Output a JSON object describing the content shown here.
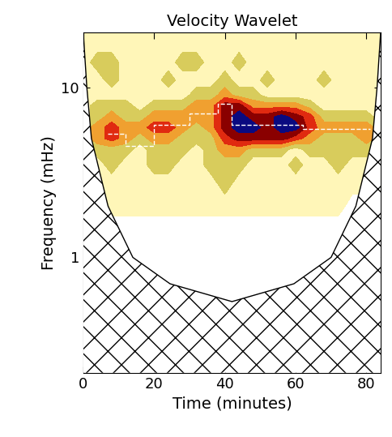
{
  "chart_data": {
    "type": "heatmap",
    "title": "Velocity Wavelet",
    "x_label": "Time (minutes)",
    "y_label": "Frequency (mHz)",
    "log": "y",
    "xlim": [
      0,
      84
    ],
    "ylim": [
      0.21,
      21
    ],
    "xticks": [
      0,
      20,
      40,
      60,
      80
    ],
    "yticks": [
      1,
      10
    ],
    "x": [
      0,
      4,
      8,
      12,
      16,
      20,
      24,
      28,
      32,
      36,
      40,
      44,
      48,
      52,
      56,
      60,
      64,
      68,
      72,
      76,
      80,
      84
    ],
    "y": [
      1.5,
      2,
      2.7,
      3.5,
      4.3,
      5,
      5.8,
      6.7,
      7.8,
      9,
      11,
      14,
      18,
      21
    ],
    "levels": [
      0.5,
      1.5,
      2.5,
      3.5,
      4.5,
      5.5,
      6.5
    ],
    "z": [
      [
        0,
        0,
        0,
        0,
        0,
        0,
        0,
        0,
        0,
        0,
        0,
        0,
        0,
        0,
        0,
        0,
        0,
        0,
        0,
        0,
        0,
        0
      ],
      [
        0,
        0,
        1,
        1,
        1,
        1,
        1,
        1,
        1,
        1,
        1,
        1,
        1,
        1,
        1,
        1,
        1,
        1,
        1,
        0,
        0,
        0
      ],
      [
        1,
        1,
        1,
        1,
        1,
        1,
        1,
        1,
        1,
        1,
        2,
        1,
        1,
        1,
        1,
        1,
        1,
        1,
        1,
        1,
        1,
        1
      ],
      [
        1,
        1,
        2,
        1,
        1,
        2,
        2,
        1,
        1,
        2,
        2,
        2,
        1,
        1,
        1,
        2,
        1,
        1,
        2,
        1,
        1,
        1
      ],
      [
        1,
        2,
        2,
        2,
        1,
        2,
        2,
        2,
        1,
        2,
        3,
        3,
        2,
        2,
        2,
        1,
        2,
        2,
        2,
        2,
        2,
        1
      ],
      [
        2,
        3,
        4,
        3,
        2,
        3,
        3,
        2,
        2,
        2,
        4,
        5,
        5,
        5,
        5,
        4,
        3,
        2,
        2,
        2,
        3,
        2
      ],
      [
        2,
        3,
        4,
        3,
        3,
        4,
        4,
        3,
        2,
        3,
        5,
        6,
        6,
        5,
        6,
        6,
        4,
        3,
        3,
        3,
        3,
        2
      ],
      [
        1,
        2,
        3,
        2,
        2,
        3,
        3,
        3,
        3,
        3,
        5,
        6,
        5,
        5,
        6,
        5,
        4,
        2,
        2,
        2,
        2,
        1
      ],
      [
        1,
        2,
        2,
        2,
        1,
        2,
        2,
        2,
        3,
        3,
        5,
        5,
        3,
        3,
        3,
        3,
        2,
        1,
        1,
        1,
        1,
        1
      ],
      [
        1,
        1,
        1,
        1,
        1,
        1,
        1,
        1,
        2,
        2,
        3,
        2,
        2,
        1,
        1,
        1,
        1,
        1,
        1,
        1,
        1,
        1
      ],
      [
        1,
        1,
        2,
        1,
        1,
        1,
        2,
        1,
        1,
        1,
        2,
        1,
        1,
        2,
        1,
        1,
        1,
        2,
        1,
        1,
        1,
        1
      ],
      [
        1,
        2,
        2,
        1,
        1,
        1,
        1,
        2,
        2,
        1,
        1,
        2,
        1,
        1,
        1,
        1,
        1,
        1,
        1,
        1,
        1,
        1
      ],
      [
        1,
        1,
        1,
        1,
        1,
        1,
        1,
        1,
        1,
        1,
        1,
        1,
        1,
        1,
        1,
        1,
        1,
        1,
        1,
        1,
        1,
        1
      ],
      [
        1,
        1,
        1,
        1,
        1,
        1,
        1,
        1,
        1,
        1,
        1,
        1,
        1,
        1,
        1,
        1,
        1,
        1,
        1,
        1,
        1,
        1
      ]
    ],
    "coi": {
      "x": [
        0,
        1,
        2.3,
        7,
        14,
        24.5,
        42,
        59.5,
        70,
        77,
        81.7,
        83,
        84
      ],
      "y": [
        21,
        10,
        5,
        2,
        1,
        0.7,
        0.55,
        0.7,
        1,
        2,
        5,
        10,
        21
      ]
    },
    "ridge": {
      "x": [
        7,
        12,
        12,
        20,
        20,
        30,
        30,
        38,
        38,
        42,
        42,
        62,
        62,
        81
      ],
      "y": [
        5.3,
        5.3,
        4.5,
        4.5,
        6,
        6,
        7,
        7,
        8,
        8,
        6,
        6,
        5.7,
        5.7
      ]
    }
  }
}
